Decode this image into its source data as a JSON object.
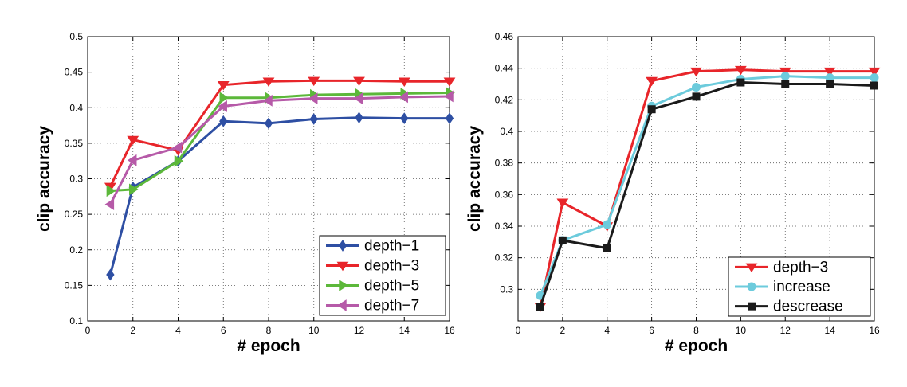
{
  "chart_data": [
    {
      "type": "line",
      "title": "",
      "xlabel": "# epoch",
      "ylabel": "clip accuracy",
      "xlim": [
        0,
        16
      ],
      "ylim": [
        0.1,
        0.5
      ],
      "xticks": [
        0,
        2,
        4,
        6,
        8,
        10,
        12,
        14,
        16
      ],
      "yticks": [
        0.1,
        0.15,
        0.2,
        0.25,
        0.3,
        0.35,
        0.4,
        0.45,
        0.5
      ],
      "ytick_labels": [
        "0.1",
        "0.15",
        "0.2",
        "0.25",
        "0.3",
        "0.35",
        "0.4",
        "0.45",
        "0.5"
      ],
      "grid": true,
      "legend_position": "bottom-right",
      "x": [
        1,
        2,
        4,
        6,
        8,
        10,
        12,
        14,
        16
      ],
      "series": [
        {
          "name": "depth−1",
          "color": "#2e4fa3",
          "marker": "diamond",
          "values": [
            0.165,
            0.288,
            0.325,
            0.381,
            0.378,
            0.384,
            0.386,
            0.385,
            0.385
          ]
        },
        {
          "name": "depth−3",
          "color": "#e8252a",
          "marker": "triangle-down",
          "values": [
            0.289,
            0.355,
            0.34,
            0.432,
            0.437,
            0.438,
            0.438,
            0.437,
            0.437
          ]
        },
        {
          "name": "depth−5",
          "color": "#5cb83a",
          "marker": "triangle-right",
          "values": [
            0.283,
            0.285,
            0.325,
            0.414,
            0.414,
            0.418,
            0.419,
            0.42,
            0.421
          ]
        },
        {
          "name": "depth−7",
          "color": "#b65aa8",
          "marker": "triangle-left",
          "values": [
            0.264,
            0.326,
            0.344,
            0.402,
            0.41,
            0.413,
            0.413,
            0.415,
            0.416
          ]
        }
      ]
    },
    {
      "type": "line",
      "title": "",
      "xlabel": "# epoch",
      "ylabel": "clip accuracy",
      "xlim": [
        0,
        16
      ],
      "ylim": [
        0.28,
        0.46
      ],
      "xticks": [
        0,
        2,
        4,
        6,
        8,
        10,
        12,
        14,
        16
      ],
      "yticks": [
        0.3,
        0.32,
        0.34,
        0.36,
        0.38,
        0.4,
        0.42,
        0.44,
        0.46
      ],
      "ytick_labels": [
        "0.3",
        "0.32",
        "0.34",
        "0.36",
        "0.38",
        "0.4",
        "0.42",
        "0.44",
        "0.46"
      ],
      "grid": true,
      "legend_position": "bottom-right",
      "x": [
        1,
        2,
        4,
        6,
        8,
        10,
        12,
        14,
        16
      ],
      "series": [
        {
          "name": "depth−3",
          "color": "#e8252a",
          "marker": "triangle-down",
          "values": [
            0.289,
            0.355,
            0.34,
            0.432,
            0.438,
            0.439,
            0.438,
            0.438,
            0.438
          ]
        },
        {
          "name": "increase",
          "color": "#6ccbdc",
          "marker": "circle",
          "values": [
            0.296,
            0.331,
            0.341,
            0.416,
            0.428,
            0.433,
            0.435,
            0.434,
            0.434
          ]
        },
        {
          "name": "descrease",
          "color": "#1a1a1a",
          "marker": "square",
          "values": [
            0.289,
            0.331,
            0.326,
            0.414,
            0.422,
            0.431,
            0.43,
            0.43,
            0.429
          ]
        }
      ]
    }
  ]
}
